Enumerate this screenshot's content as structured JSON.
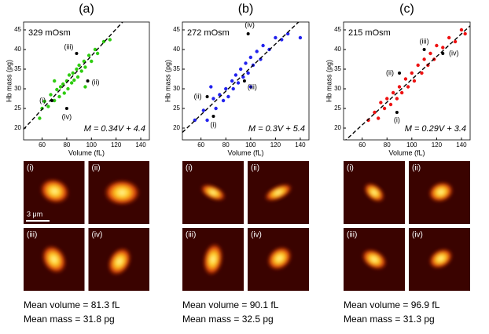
{
  "chart_data": [
    {
      "type": "scatter",
      "title": "(a)",
      "condition": "329 mOsm",
      "x_label": "Volume (fL)",
      "y_label": "Hb mass (pg)",
      "xlim": [
        45,
        147
      ],
      "ylim": [
        17,
        47
      ],
      "xticks": [
        60,
        80,
        100,
        120,
        140
      ],
      "yticks": [
        20,
        25,
        30,
        35,
        40,
        45
      ],
      "color": "#2ecc10",
      "x": [
        60,
        62,
        65,
        67,
        70,
        72,
        74,
        75,
        77,
        78,
        80,
        81,
        82,
        84,
        85,
        86,
        88,
        89,
        90,
        92,
        94,
        95,
        98,
        100,
        103,
        105,
        110,
        115,
        58,
        70,
        95
      ],
      "y": [
        25.0,
        26.8,
        25.5,
        28.5,
        27.0,
        29.8,
        28.0,
        30.5,
        31.2,
        28.9,
        32.0,
        30.0,
        33.5,
        31.5,
        34.0,
        32.2,
        35.0,
        33.0,
        36.0,
        34.5,
        37.0,
        35.5,
        38.5,
        37.0,
        40.0,
        39.0,
        42.0,
        42.5,
        22.5,
        32.0,
        30.5
      ],
      "fit": {
        "slope": 0.34,
        "intercept": 4.4,
        "label": "M = 0.34V + 4.4"
      },
      "annotations": [
        {
          "label": "(i)",
          "x": 68,
          "y": 27
        },
        {
          "label": "(ii)",
          "x": 97,
          "y": 32
        },
        {
          "label": "(iii)",
          "x": 88,
          "y": 39
        },
        {
          "label": "(iv)",
          "x": 80,
          "y": 25
        }
      ]
    },
    {
      "type": "scatter",
      "title": "(b)",
      "condition": "272 mOsm",
      "x_label": "Volume (fL)",
      "y_label": "Hb mass (pg)",
      "xlim": [
        45,
        147
      ],
      "ylim": [
        17,
        47
      ],
      "xticks": [
        60,
        80,
        100,
        120,
        140
      ],
      "yticks": [
        20,
        25,
        30,
        35,
        40,
        45
      ],
      "color": "#2222ee",
      "x": [
        55,
        62,
        65,
        70,
        72,
        75,
        78,
        80,
        82,
        85,
        86,
        88,
        90,
        92,
        94,
        96,
        98,
        100,
        102,
        105,
        108,
        110,
        115,
        120,
        125,
        130,
        140,
        68,
        100
      ],
      "y": [
        22.0,
        24.5,
        22.0,
        27.5,
        25.0,
        28.5,
        27.0,
        30.0,
        28.0,
        32.0,
        30.0,
        33.5,
        31.5,
        35.0,
        33.0,
        36.5,
        34.0,
        38.0,
        36.0,
        39.5,
        37.5,
        41.0,
        40.0,
        43.0,
        42.5,
        44.0,
        43.0,
        30.5,
        30.5
      ],
      "fit": {
        "slope": 0.3,
        "intercept": 5.4,
        "label": "M = 0.3V + 5.4"
      },
      "annotations": [
        {
          "label": "(i)",
          "x": 70,
          "y": 23
        },
        {
          "label": "(ii)",
          "x": 65,
          "y": 28
        },
        {
          "label": "(iii)",
          "x": 95,
          "y": 32
        },
        {
          "label": "(iv)",
          "x": 98,
          "y": 44
        }
      ]
    },
    {
      "type": "scatter",
      "title": "(c)",
      "condition": "215 mOsm",
      "x_label": "Volume (fL)",
      "y_label": "Hb mass (pg)",
      "xlim": [
        45,
        147
      ],
      "ylim": [
        17,
        47
      ],
      "xticks": [
        60,
        80,
        100,
        120,
        140
      ],
      "yticks": [
        20,
        25,
        30,
        35,
        40,
        45
      ],
      "color": "#ee1111",
      "x": [
        65,
        70,
        73,
        75,
        78,
        80,
        83,
        85,
        88,
        90,
        92,
        95,
        97,
        100,
        102,
        105,
        108,
        110,
        113,
        115,
        118,
        120,
        125,
        130,
        135,
        140,
        143
      ],
      "y": [
        22.0,
        24.0,
        22.5,
        26.5,
        25.0,
        27.5,
        26.0,
        29.0,
        27.5,
        30.5,
        29.0,
        32.5,
        30.5,
        34.0,
        32.0,
        36.0,
        34.0,
        37.5,
        36.0,
        39.0,
        37.5,
        41.0,
        40.5,
        43.0,
        42.0,
        45.0,
        44.0
      ],
      "fit": {
        "slope": 0.29,
        "intercept": 3.4,
        "label": "M = 0.29V + 3.4"
      },
      "annotations": [
        {
          "label": "(i)",
          "x": 88,
          "y": 24
        },
        {
          "label": "(ii)",
          "x": 90,
          "y": 34
        },
        {
          "label": "(iii)",
          "x": 110,
          "y": 40
        },
        {
          "label": "(iv)",
          "x": 125,
          "y": 39
        }
      ]
    }
  ],
  "images": [
    {
      "labels": [
        "(i)",
        "(ii)",
        "(iii)",
        "(iv)"
      ],
      "scale_bar": "3 μm",
      "mean_volume": "Mean volume = 81.3 fL",
      "mean_mass": "Mean mass = 31.8 pg"
    },
    {
      "labels": [
        "(i)",
        "(ii)",
        "(iii)",
        "(iv)"
      ],
      "mean_volume": "Mean volume = 90.1 fL",
      "mean_mass": "Mean mass = 32.5 pg"
    },
    {
      "labels": [
        "(i)",
        "(ii)",
        "(iii)",
        "(iv)"
      ],
      "mean_volume": "Mean volume = 96.9 fL",
      "mean_mass": "Mean mass = 31.3 pg"
    }
  ]
}
